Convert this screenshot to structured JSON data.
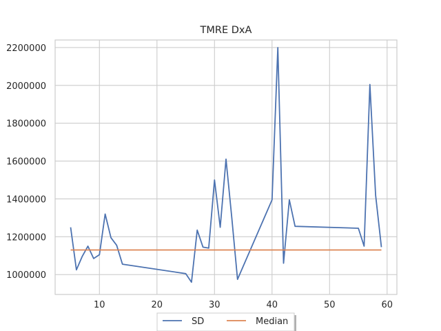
{
  "chart_data": {
    "type": "line",
    "title": "TMRE DxA",
    "xlabel": "",
    "ylabel": "",
    "xlim": [
      2.3,
      61.7
    ],
    "ylim": [
      895000,
      2240000
    ],
    "xticks": [
      10,
      20,
      30,
      40,
      50,
      60
    ],
    "yticks": [
      1000000,
      1200000,
      1400000,
      1600000,
      1800000,
      2000000,
      2200000
    ],
    "grid": true,
    "legend_position": "bottom-center",
    "series": [
      {
        "name": "SD",
        "color": "#4c72b0",
        "x": [
          5,
          6,
          7,
          8,
          9,
          10,
          11,
          12,
          13,
          14,
          25,
          26,
          27,
          28,
          29,
          30,
          31,
          32,
          33,
          34,
          40,
          41,
          42,
          43,
          44,
          55,
          56,
          57,
          58,
          59
        ],
        "y": [
          1250000,
          1025000,
          1095000,
          1150000,
          1085000,
          1105000,
          1320000,
          1195000,
          1155000,
          1055000,
          1005000,
          960000,
          1235000,
          1145000,
          1140000,
          1500000,
          1250000,
          1610000,
          1300000,
          975000,
          1395000,
          2200000,
          1060000,
          1395000,
          1255000,
          1245000,
          1150000,
          2005000,
          1420000,
          1145000
        ]
      },
      {
        "name": "Median",
        "color": "#dd8452",
        "x": [
          5,
          59
        ],
        "y": [
          1130000,
          1130000
        ]
      }
    ]
  }
}
